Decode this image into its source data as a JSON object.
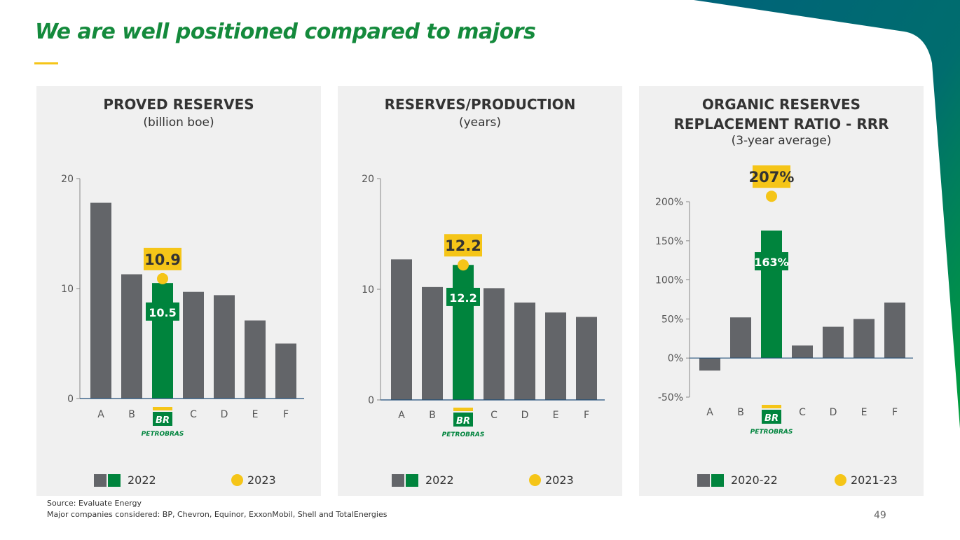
{
  "title": "We are well positioned compared to majors",
  "colors": {
    "green": "#00843d",
    "grey": "#636569",
    "yellow": "#f5c518",
    "title_green": "#148a3c",
    "panel_bg": "#f0f0f0",
    "teal": "#00637a"
  },
  "brand": {
    "logo_text": "BR",
    "name": "PETROBRAS"
  },
  "chart_data": [
    {
      "type": "bar",
      "title": "PROVED RESERVES",
      "subtitle": "(billion boe)",
      "categories": [
        "A",
        "B",
        "BR",
        "C",
        "D",
        "E",
        "F"
      ],
      "highlight_index": 2,
      "series": [
        {
          "name": "2022",
          "values": [
            17.8,
            11.3,
            10.5,
            9.7,
            9.4,
            7.1,
            5.0
          ]
        }
      ],
      "highlight_point": {
        "name": "2023",
        "value": 10.9,
        "label": "10.9"
      },
      "bar_label": "10.5",
      "ylim": [
        0,
        20
      ],
      "yticks": [
        0,
        10,
        20
      ],
      "ytick_labels": [
        "0",
        "10",
        "20"
      ],
      "legend": {
        "bars": "2022",
        "dot": "2023"
      }
    },
    {
      "type": "bar",
      "title": "RESERVES/PRODUCTION",
      "subtitle": "(years)",
      "categories": [
        "A",
        "B",
        "BR",
        "C",
        "D",
        "E",
        "F"
      ],
      "highlight_index": 2,
      "series": [
        {
          "name": "2022",
          "values": [
            12.7,
            10.2,
            12.2,
            10.1,
            8.8,
            7.9,
            7.5
          ]
        }
      ],
      "highlight_point": {
        "name": "2023",
        "value": 12.2,
        "label": "12.2"
      },
      "bar_label": "12.2",
      "ylim": [
        0,
        20
      ],
      "yticks": [
        0,
        10,
        20
      ],
      "ytick_labels": [
        "0",
        "10",
        "20"
      ],
      "legend": {
        "bars": "2022",
        "dot": "2023"
      }
    },
    {
      "type": "bar",
      "title": "ORGANIC RESERVES REPLACEMENT RATIO - RRR",
      "title_lines": [
        "ORGANIC RESERVES",
        "REPLACEMENT RATIO - RRR"
      ],
      "subtitle": "(3-year average)",
      "categories": [
        "A",
        "B",
        "BR",
        "C",
        "D",
        "E",
        "F"
      ],
      "highlight_index": 2,
      "series": [
        {
          "name": "2020-22",
          "values": [
            -16,
            52,
            163,
            16,
            40,
            50,
            71
          ]
        }
      ],
      "highlight_point": {
        "name": "2021-23",
        "value": 207,
        "label": "207%"
      },
      "bar_label": "163%",
      "ylim": [
        -50,
        200
      ],
      "yticks": [
        -50,
        0,
        50,
        100,
        150,
        200
      ],
      "ytick_labels": [
        "-50%",
        "0%",
        "50%",
        "100%",
        "150%",
        "200%"
      ],
      "legend": {
        "bars": "2020-22",
        "dot": "2021-23"
      }
    }
  ],
  "footer": {
    "source": "Source: Evaluate Energy",
    "note": "Major companies considered: BP, Chevron, Equinor, ExxonMobil, Shell and TotalEnergies"
  },
  "page_number": "49"
}
